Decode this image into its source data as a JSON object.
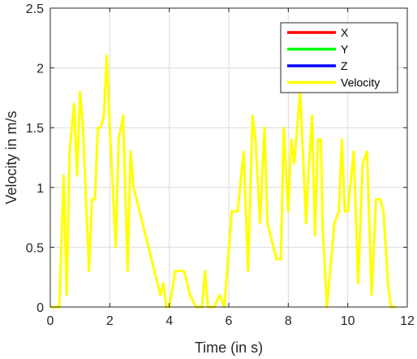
{
  "chart_data": {
    "type": "line",
    "xlabel": "Time (in s)",
    "ylabel": "Velocity in m/s",
    "xlim": [
      0,
      12
    ],
    "ylim": [
      0,
      2.5
    ],
    "x_ticks": [
      0,
      2,
      4,
      6,
      8,
      10,
      12
    ],
    "y_ticks": [
      0,
      0.5,
      1,
      1.5,
      2,
      2.5
    ],
    "x_tick_labels": [
      "0",
      "2",
      "4",
      "6",
      "8",
      "10",
      "12"
    ],
    "y_tick_labels": [
      "0",
      "0.5",
      "1",
      "1.5",
      "2",
      "2.5"
    ],
    "grid": true,
    "legend_position": "top-right",
    "series": [
      {
        "name": "X",
        "color": "#ff0000",
        "x": [],
        "y": []
      },
      {
        "name": "Y",
        "color": "#00ff00",
        "x": [],
        "y": []
      },
      {
        "name": "Z",
        "color": "#0000ff",
        "x": [],
        "y": []
      },
      {
        "name": "Velocity",
        "color": "#ffff00",
        "x": [
          0,
          0.1,
          0.3,
          0.45,
          0.55,
          0.65,
          0.8,
          0.9,
          1.0,
          1.1,
          1.3,
          1.4,
          1.5,
          1.6,
          1.7,
          1.8,
          1.9,
          2.0,
          2.2,
          2.3,
          2.45,
          2.6,
          2.7,
          2.8,
          3.0,
          3.3,
          3.5,
          3.7,
          3.8,
          3.9,
          4.0,
          4.2,
          4.3,
          4.5,
          4.7,
          4.9,
          5.1,
          5.2,
          5.3,
          5.5,
          5.7,
          5.85,
          6.1,
          6.3,
          6.5,
          6.65,
          6.8,
          6.9,
          7.05,
          7.2,
          7.3,
          7.5,
          7.6,
          7.75,
          7.85,
          8.0,
          8.1,
          8.2,
          8.4,
          8.6,
          8.65,
          8.8,
          8.9,
          9.0,
          9.1,
          9.15,
          9.3,
          9.55,
          9.7,
          9.8,
          9.9,
          10.0,
          10.2,
          10.35,
          10.5,
          10.65,
          10.8,
          10.95,
          11.1,
          11.2,
          11.35,
          11.45,
          11.6
        ],
        "y": [
          0,
          0,
          0,
          1.1,
          0.1,
          1.3,
          1.7,
          1.1,
          1.8,
          1.5,
          0.3,
          0.9,
          0.9,
          1.5,
          1.5,
          1.6,
          2.1,
          1.5,
          0.5,
          1.4,
          1.6,
          0.3,
          1.3,
          1.0,
          0.8,
          0.5,
          0.3,
          0.1,
          0.2,
          0.0,
          0.0,
          0.3,
          0.3,
          0.3,
          0.1,
          0.0,
          0.0,
          0.3,
          0.0,
          0.0,
          0.1,
          0.0,
          0.8,
          0.8,
          1.3,
          0.3,
          1.6,
          1.4,
          0.7,
          1.5,
          0.7,
          0.5,
          0.4,
          0.4,
          1.5,
          0.8,
          1.4,
          1.2,
          1.8,
          0.7,
          1.0,
          1.6,
          0.6,
          1.4,
          1.4,
          0.7,
          0.0,
          0.7,
          0.8,
          1.4,
          0.8,
          0.8,
          1.3,
          0.2,
          1.2,
          1.3,
          0.1,
          0.9,
          0.9,
          0.8,
          0.2,
          0.0,
          0.0
        ]
      }
    ]
  }
}
